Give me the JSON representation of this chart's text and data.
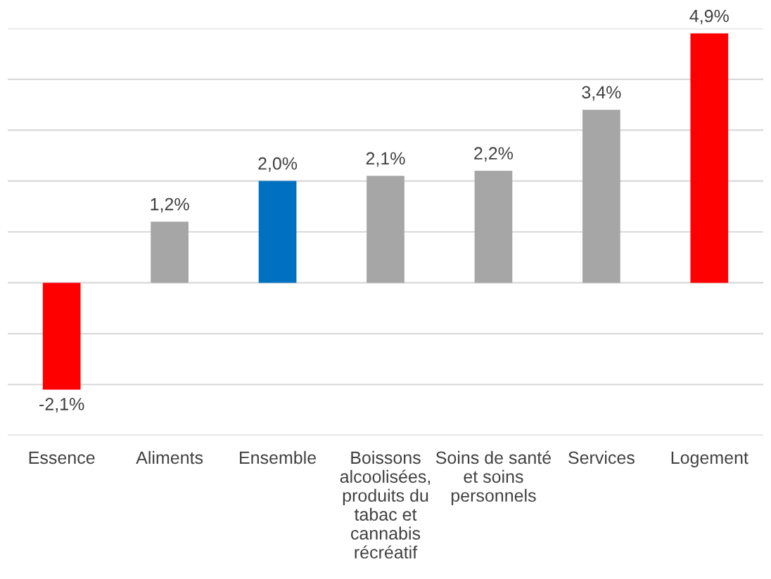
{
  "chart_data": {
    "type": "bar",
    "categories": [
      "Essence",
      "Aliments",
      "Ensemble",
      "Boissons\nalcoolisées,\nproduits du\ntabac et\ncannabis\nrécréatif",
      "Soins de santé\net soins\npersonnels",
      "Services",
      "Logement"
    ],
    "values": [
      -2.1,
      1.2,
      2.0,
      2.1,
      2.2,
      3.4,
      4.9
    ],
    "colors": [
      "#ff0000",
      "#a6a6a6",
      "#0070c0",
      "#a6a6a6",
      "#a6a6a6",
      "#a6a6a6",
      "#ff0000"
    ],
    "value_labels": [
      "-2,1%",
      "1,2%",
      "2,0%",
      "2,1%",
      "2,2%",
      "3,4%",
      "4,9%"
    ],
    "ylim": [
      -3,
      5
    ],
    "yticks": [
      {
        "value": -3,
        "label": null
      },
      {
        "value": -2,
        "label": null
      },
      {
        "value": -1,
        "label": null
      },
      {
        "value": 0,
        "label": null
      },
      {
        "value": 1,
        "label": null
      },
      {
        "value": 2,
        "label": null
      },
      {
        "value": 3,
        "label": null
      },
      {
        "value": 4,
        "label": null
      },
      {
        "value": 5,
        "label": null
      }
    ],
    "grid": "y",
    "tick_labels": "x",
    "legend": false
  }
}
